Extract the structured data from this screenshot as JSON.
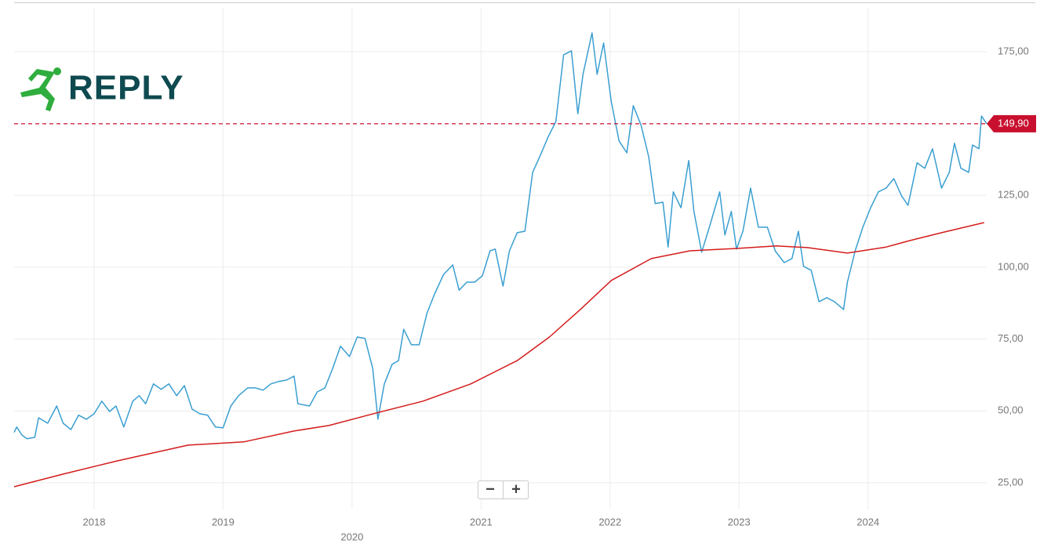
{
  "logo": "REPLY",
  "zoom": {
    "minus": "−",
    "plus": "+"
  },
  "chart_data": {
    "type": "line",
    "series": [
      {
        "color": "#3a9fd1",
        "x": [
          2017.38,
          2017.4,
          2017.44,
          2017.48,
          2017.54,
          2017.57,
          2017.64,
          2017.71,
          2017.76,
          2017.82,
          2017.88,
          2017.94,
          2018.0,
          2018.06,
          2018.12,
          2018.17,
          2018.23,
          2018.3,
          2018.35,
          2018.4,
          2018.46,
          2018.52,
          2018.58,
          2018.64,
          2018.7,
          2018.76,
          2018.82,
          2018.88,
          2018.94,
          2019.0,
          2019.06,
          2019.12,
          2019.19,
          2019.25,
          2019.31,
          2019.37,
          2019.43,
          2019.49,
          2019.55,
          2019.58,
          2019.67,
          2019.73,
          2019.79,
          2019.85,
          2019.91,
          2019.98,
          2020.04,
          2020.1,
          2020.16,
          2020.2,
          2020.25,
          2020.31,
          2020.36,
          2020.4,
          2020.46,
          2020.52,
          2020.58,
          2020.64,
          2020.71,
          2020.78,
          2020.83,
          2020.89,
          2020.95,
          2021.01,
          2021.07,
          2021.11,
          2021.17,
          2021.22,
          2021.28,
          2021.34,
          2021.4,
          2021.46,
          2021.52,
          2021.58,
          2021.64,
          2021.7,
          2021.75,
          2021.79,
          2021.86,
          2021.9,
          2021.95,
          2022.01,
          2022.07,
          2022.13,
          2022.18,
          2022.24,
          2022.3,
          2022.35,
          2022.41,
          2022.45,
          2022.49,
          2022.55,
          2022.61,
          2022.65,
          2022.71,
          2022.77,
          2022.85,
          2022.89,
          2022.94,
          2022.98,
          2023.03,
          2023.09,
          2023.15,
          2023.22,
          2023.28,
          2023.35,
          2023.41,
          2023.46,
          2023.5,
          2023.56,
          2023.62,
          2023.68,
          2023.74,
          2023.81,
          2023.84,
          2023.9,
          2023.96,
          2024.02,
          2024.08,
          2024.14,
          2024.2,
          2024.26,
          2024.31,
          2024.38,
          2024.44,
          2024.5,
          2024.57,
          2024.63,
          2024.67,
          2024.72,
          2024.78,
          2024.81,
          2024.86,
          2024.88,
          2024.92
        ],
        "values": [
          42.5,
          44.4,
          41.6,
          40.3,
          40.8,
          47.6,
          45.7,
          51.7,
          45.7,
          43.5,
          48.5,
          47.1,
          49,
          53.4,
          49.8,
          51.7,
          44.4,
          53.4,
          55.3,
          52.5,
          59.4,
          57.5,
          59.4,
          55.3,
          58.8,
          50.6,
          49,
          48.5,
          44.4,
          44.1,
          51.7,
          55.3,
          58,
          58,
          57.2,
          59.4,
          60.2,
          60.7,
          62.1,
          52.5,
          51.7,
          56.6,
          58,
          64.8,
          72.5,
          68.9,
          75.7,
          75.2,
          64.8,
          47.1,
          59.4,
          66.2,
          67.5,
          78.4,
          73,
          73,
          83.9,
          90.7,
          97.5,
          100.8,
          92,
          94.8,
          94.8,
          97,
          105.7,
          106.3,
          93.4,
          105.7,
          112,
          112.5,
          133,
          139,
          145.3,
          150.7,
          173.9,
          175.3,
          153.4,
          167.1,
          181.5,
          167.1,
          178,
          157.5,
          143.9,
          139.8,
          156.2,
          149.4,
          138.4,
          122.1,
          122.6,
          107,
          126.2,
          120.7,
          137.1,
          119.4,
          105.2,
          113.9,
          126.2,
          111.2,
          119.4,
          106.3,
          112.5,
          127.5,
          113.9,
          113.9,
          105.7,
          101.6,
          103,
          112.5,
          100.3,
          98.9,
          88,
          89.4,
          88,
          85.3,
          94.8,
          105.7,
          113.9,
          120.7,
          126.2,
          127.5,
          130.8,
          124.8,
          121.5,
          136.3,
          134.4,
          141.2,
          127.5,
          133,
          143.1,
          134.4,
          133,
          142.5,
          141.2,
          152.6,
          149.9
        ]
      },
      {
        "color": "#d41c1c",
        "x": [
          2017.38,
          2017.76,
          2018.18,
          2018.73,
          2019.16,
          2019.55,
          2019.82,
          2020.19,
          2020.55,
          2020.92,
          2021.28,
          2021.53,
          2021.77,
          2022.01,
          2022.32,
          2022.62,
          2022.98,
          2023.29,
          2023.53,
          2023.84,
          2024.14,
          2024.32,
          2024.57,
          2024.9
        ],
        "values": [
          23.6,
          28,
          32.6,
          38.1,
          39.2,
          43,
          44.9,
          49.3,
          53.4,
          59.4,
          67.5,
          75.7,
          85.3,
          95.4,
          103,
          105.7,
          106.5,
          107.4,
          106.8,
          104.9,
          107,
          109.2,
          112,
          115.5
        ]
      }
    ],
    "reference_line": {
      "value": 149.9,
      "label": "149,90",
      "color": "#c8102e"
    },
    "xlim": [
      2017.38,
      2024.92
    ],
    "xticks": [
      2018,
      2019,
      2020,
      2021,
      2022,
      2023,
      2024
    ],
    "ylim": [
      15.7,
      191.6
    ],
    "yticks": [
      {
        "value": 25,
        "label": "25,00"
      },
      {
        "value": 50,
        "label": "50,00"
      },
      {
        "value": 75,
        "label": "75,00"
      },
      {
        "value": 100,
        "label": "100,00"
      },
      {
        "value": 125,
        "label": "125,00"
      },
      {
        "value": 175,
        "label": "175,00"
      }
    ],
    "grid": true
  }
}
